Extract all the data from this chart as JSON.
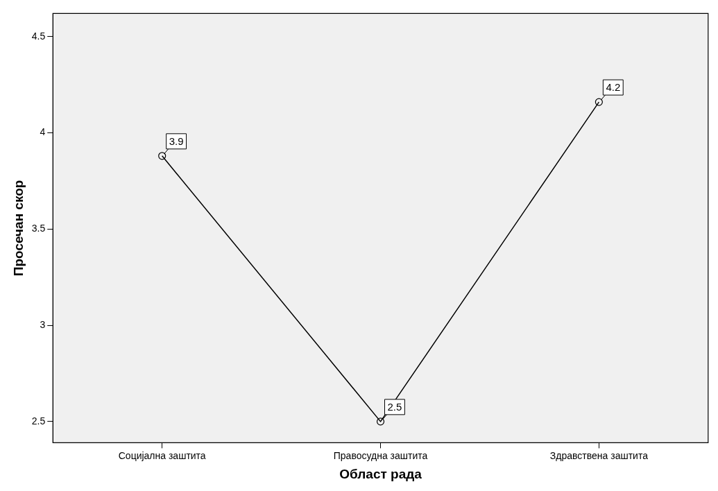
{
  "chart_data": {
    "type": "line",
    "xlabel": "Област рада",
    "ylabel": "Просечан скор",
    "categories": [
      "Социјална заштита",
      "Правосудна заштита",
      "Здравствена заштита"
    ],
    "series": [
      {
        "color": "#000000",
        "values": [
          3.88,
          2.5,
          4.16
        ],
        "value_labels": [
          "3.9",
          "2.5",
          "4.2"
        ]
      }
    ],
    "ylim": [
      2.39,
      4.62
    ],
    "yticks": [
      2.5,
      3,
      3.5,
      4,
      4.5
    ],
    "grid": false,
    "legend": false,
    "marker": "circle",
    "line_style": "solid"
  }
}
